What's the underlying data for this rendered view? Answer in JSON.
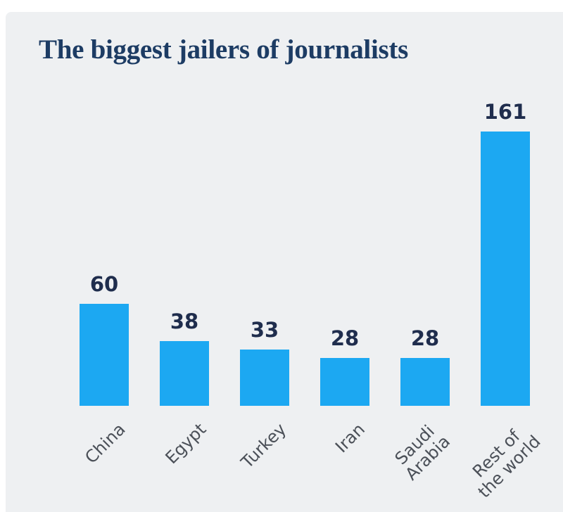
{
  "page": {
    "background_color": "#ffffff",
    "panel_color": "#eef0f2"
  },
  "chart_data": {
    "type": "bar",
    "title": "The biggest jailers of journalists",
    "categories": [
      "China",
      "Egypt",
      "Turkey",
      "Iran",
      "Saudi\nArabia",
      "Rest of\nthe world"
    ],
    "values": [
      60,
      38,
      33,
      28,
      28,
      161
    ],
    "value_labels": [
      "60",
      "38",
      "33",
      "28",
      "28",
      "161"
    ],
    "xlabel": "",
    "ylabel": "",
    "ylim": [
      0,
      161
    ],
    "grid": false,
    "legend": false,
    "axis_lines": false,
    "bar_color": "#1ca8f2",
    "title_color": "#1d3c64",
    "value_label_color": "#1f2d4d",
    "tick_label_color": "#4b5058"
  }
}
